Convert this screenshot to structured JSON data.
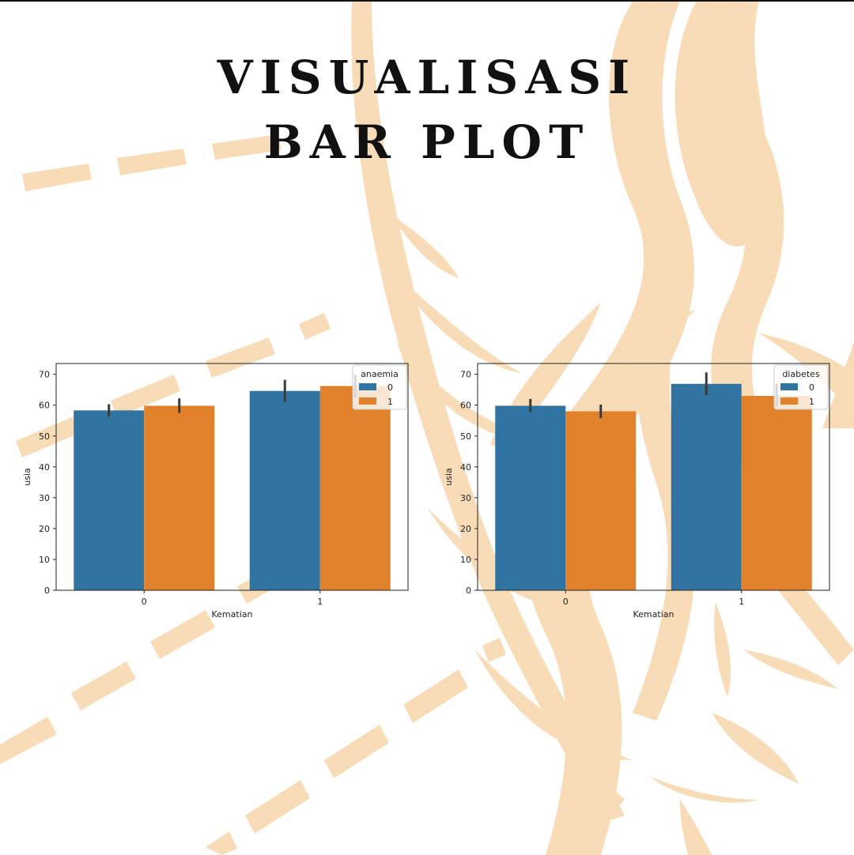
{
  "title": {
    "line1": "VISUALISASI",
    "line2": "BAR PLOT"
  },
  "colors": {
    "series0": "#3274a1",
    "series1": "#e1812c",
    "decoration": "#f8dcb8",
    "errorbar": "#3a3a3a"
  },
  "chart_data": [
    {
      "type": "bar",
      "categories": [
        "0",
        "1"
      ],
      "xlabel": "Kematian",
      "ylabel": "usia",
      "ylim": [
        0,
        73.5
      ],
      "yticks": [
        0,
        10,
        20,
        30,
        40,
        50,
        60,
        70
      ],
      "legend": {
        "title": "anaemia",
        "placement": "top-right"
      },
      "series": [
        {
          "name": "0",
          "values": [
            58.3,
            64.6
          ],
          "err_low": [
            56.3,
            61.0
          ],
          "err_high": [
            60.3,
            68.2
          ]
        },
        {
          "name": "1",
          "values": [
            59.8,
            66.2
          ],
          "err_low": [
            57.5,
            62.5
          ],
          "err_high": [
            62.2,
            69.8
          ]
        }
      ],
      "grid": false
    },
    {
      "type": "bar",
      "categories": [
        "0",
        "1"
      ],
      "xlabel": "Kematian",
      "ylabel": "usia",
      "ylim": [
        0,
        73.5
      ],
      "yticks": [
        0,
        10,
        20,
        30,
        40,
        50,
        60,
        70
      ],
      "legend": {
        "title": "diabetes",
        "placement": "top-right"
      },
      "series": [
        {
          "name": "0",
          "values": [
            59.8,
            66.9
          ],
          "err_low": [
            57.7,
            63.3
          ],
          "err_high": [
            62.0,
            70.6
          ]
        },
        {
          "name": "1",
          "values": [
            58.0,
            63.0
          ],
          "err_low": [
            55.8,
            59.6
          ],
          "err_high": [
            60.2,
            67.0
          ]
        }
      ],
      "grid": false
    }
  ]
}
